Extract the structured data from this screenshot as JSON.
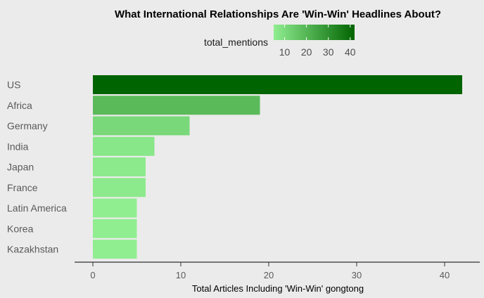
{
  "chart_data": {
    "type": "bar",
    "orientation": "horizontal",
    "title": "What International Relationships Are 'Win-Win' Headlines About?",
    "xlabel": "Total Articles Including 'Win-Win' gongtong",
    "ylabel": "",
    "categories": [
      "US",
      "Africa",
      "Germany",
      "India",
      "Japan",
      "France",
      "Latin America",
      "Korea",
      "Kazakhstan"
    ],
    "values": [
      42,
      19,
      11,
      7,
      6,
      6,
      5,
      5,
      5
    ],
    "xlim": [
      -2,
      44
    ],
    "xticks": [
      0,
      10,
      20,
      30,
      40
    ],
    "grid": false,
    "legend": {
      "title": "total_mentions",
      "position": "top",
      "type": "colorbar",
      "ticks": [
        10,
        20,
        30,
        40
      ],
      "range": [
        5,
        42
      ],
      "color_low": "#90ee90",
      "color_high": "#006400"
    }
  }
}
